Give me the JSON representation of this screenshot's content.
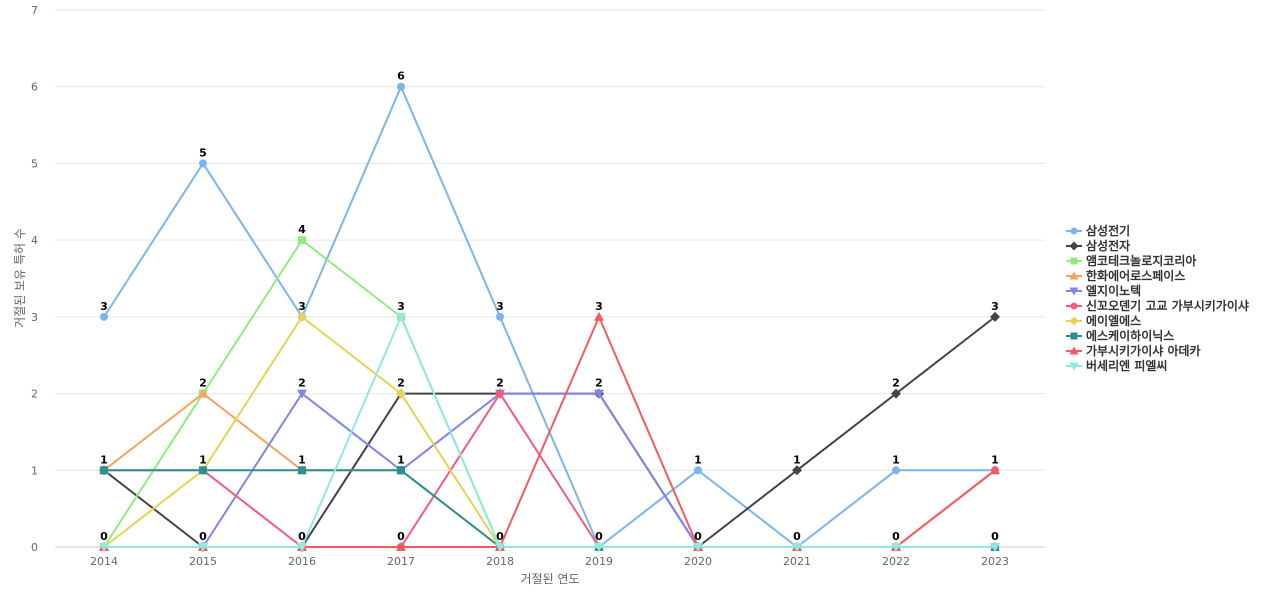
{
  "chart_data": {
    "type": "line",
    "title": "",
    "xlabel": "거절된 연도",
    "ylabel": "거절된 보유 특허 수",
    "ylim": [
      0,
      7
    ],
    "yticks": [
      0,
      1,
      2,
      3,
      4,
      5,
      6,
      7
    ],
    "categories": [
      "2014",
      "2015",
      "2016",
      "2017",
      "2018",
      "2019",
      "2020",
      "2021",
      "2022",
      "2023"
    ],
    "grid": true,
    "legend_position": "right",
    "series": [
      {
        "name": "삼성전기",
        "color": "#7cb5ec",
        "marker": "circle",
        "values": [
          3,
          5,
          3,
          6,
          3,
          0,
          1,
          0,
          1,
          1
        ]
      },
      {
        "name": "삼성전자",
        "color": "#434348",
        "marker": "diamond",
        "values": [
          1,
          0,
          0,
          2,
          2,
          2,
          0,
          1,
          2,
          3
        ]
      },
      {
        "name": "앰코테크놀로지코리아",
        "color": "#90ed7d",
        "marker": "square",
        "values": [
          0,
          2,
          4,
          3,
          0,
          0,
          0,
          0,
          0,
          0
        ]
      },
      {
        "name": "한화에어로스페이스",
        "color": "#f7a35c",
        "marker": "triangle",
        "values": [
          1,
          2,
          1,
          1,
          0,
          0,
          0,
          0,
          0,
          0
        ]
      },
      {
        "name": "엘지이노텍",
        "color": "#8085e9",
        "marker": "triangle-down",
        "values": [
          0,
          0,
          2,
          1,
          2,
          2,
          0,
          0,
          0,
          0
        ]
      },
      {
        "name": "신꼬오덴기 고교 가부시키가이샤",
        "color": "#f15c80",
        "marker": "circle",
        "values": [
          1,
          1,
          0,
          0,
          2,
          0,
          0,
          0,
          0,
          1
        ]
      },
      {
        "name": "에이엘에스",
        "color": "#e4d354",
        "marker": "diamond",
        "values": [
          0,
          1,
          3,
          2,
          0,
          0,
          0,
          0,
          0,
          0
        ]
      },
      {
        "name": "에스케이하이닉스",
        "color": "#2b908f",
        "marker": "square",
        "values": [
          1,
          1,
          1,
          1,
          0,
          0,
          0,
          0,
          0,
          0
        ]
      },
      {
        "name": "가부시키가이샤 아데카",
        "color": "#f45b5b",
        "marker": "triangle",
        "values": [
          0,
          0,
          0,
          0,
          0,
          3,
          0,
          0,
          0,
          1
        ]
      },
      {
        "name": "버세리엔 피엘씨",
        "color": "#91e8e1",
        "marker": "triangle-down",
        "values": [
          0,
          0,
          0,
          3,
          0,
          0,
          0,
          0,
          0,
          0
        ]
      }
    ],
    "data_labels": [
      {
        "category": "2014",
        "value": 3,
        "text": "3"
      },
      {
        "category": "2014",
        "value": 1,
        "text": "1"
      },
      {
        "category": "2014",
        "value": 0,
        "text": "0"
      },
      {
        "category": "2015",
        "value": 5,
        "text": "5"
      },
      {
        "category": "2015",
        "value": 2,
        "text": "2"
      },
      {
        "category": "2015",
        "value": 1,
        "text": "1"
      },
      {
        "category": "2015",
        "value": 0,
        "text": "0"
      },
      {
        "category": "2016",
        "value": 4,
        "text": "4"
      },
      {
        "category": "2016",
        "value": 3,
        "text": "3"
      },
      {
        "category": "2016",
        "value": 2,
        "text": "2"
      },
      {
        "category": "2016",
        "value": 1,
        "text": "1"
      },
      {
        "category": "2016",
        "value": 0,
        "text": "0"
      },
      {
        "category": "2017",
        "value": 6,
        "text": "6"
      },
      {
        "category": "2017",
        "value": 3,
        "text": "3"
      },
      {
        "category": "2017",
        "value": 2,
        "text": "2"
      },
      {
        "category": "2017",
        "value": 1,
        "text": "1"
      },
      {
        "category": "2017",
        "value": 0,
        "text": "0"
      },
      {
        "category": "2018",
        "value": 3,
        "text": "3"
      },
      {
        "category": "2018",
        "value": 2,
        "text": "2"
      },
      {
        "category": "2018",
        "value": 0,
        "text": "0"
      },
      {
        "category": "2019",
        "value": 3,
        "text": "3"
      },
      {
        "category": "2019",
        "value": 2,
        "text": "2"
      },
      {
        "category": "2019",
        "value": 0,
        "text": "0"
      },
      {
        "category": "2020",
        "value": 1,
        "text": "1"
      },
      {
        "category": "2020",
        "value": 0,
        "text": "0"
      },
      {
        "category": "2021",
        "value": 1,
        "text": "1"
      },
      {
        "category": "2021",
        "value": 0,
        "text": "0"
      },
      {
        "category": "2022",
        "value": 2,
        "text": "2"
      },
      {
        "category": "2022",
        "value": 1,
        "text": "1"
      },
      {
        "category": "2022",
        "value": 0,
        "text": "0"
      },
      {
        "category": "2023",
        "value": 3,
        "text": "3"
      },
      {
        "category": "2023",
        "value": 1,
        "text": "1"
      },
      {
        "category": "2023",
        "value": 0,
        "text": "0"
      }
    ]
  }
}
